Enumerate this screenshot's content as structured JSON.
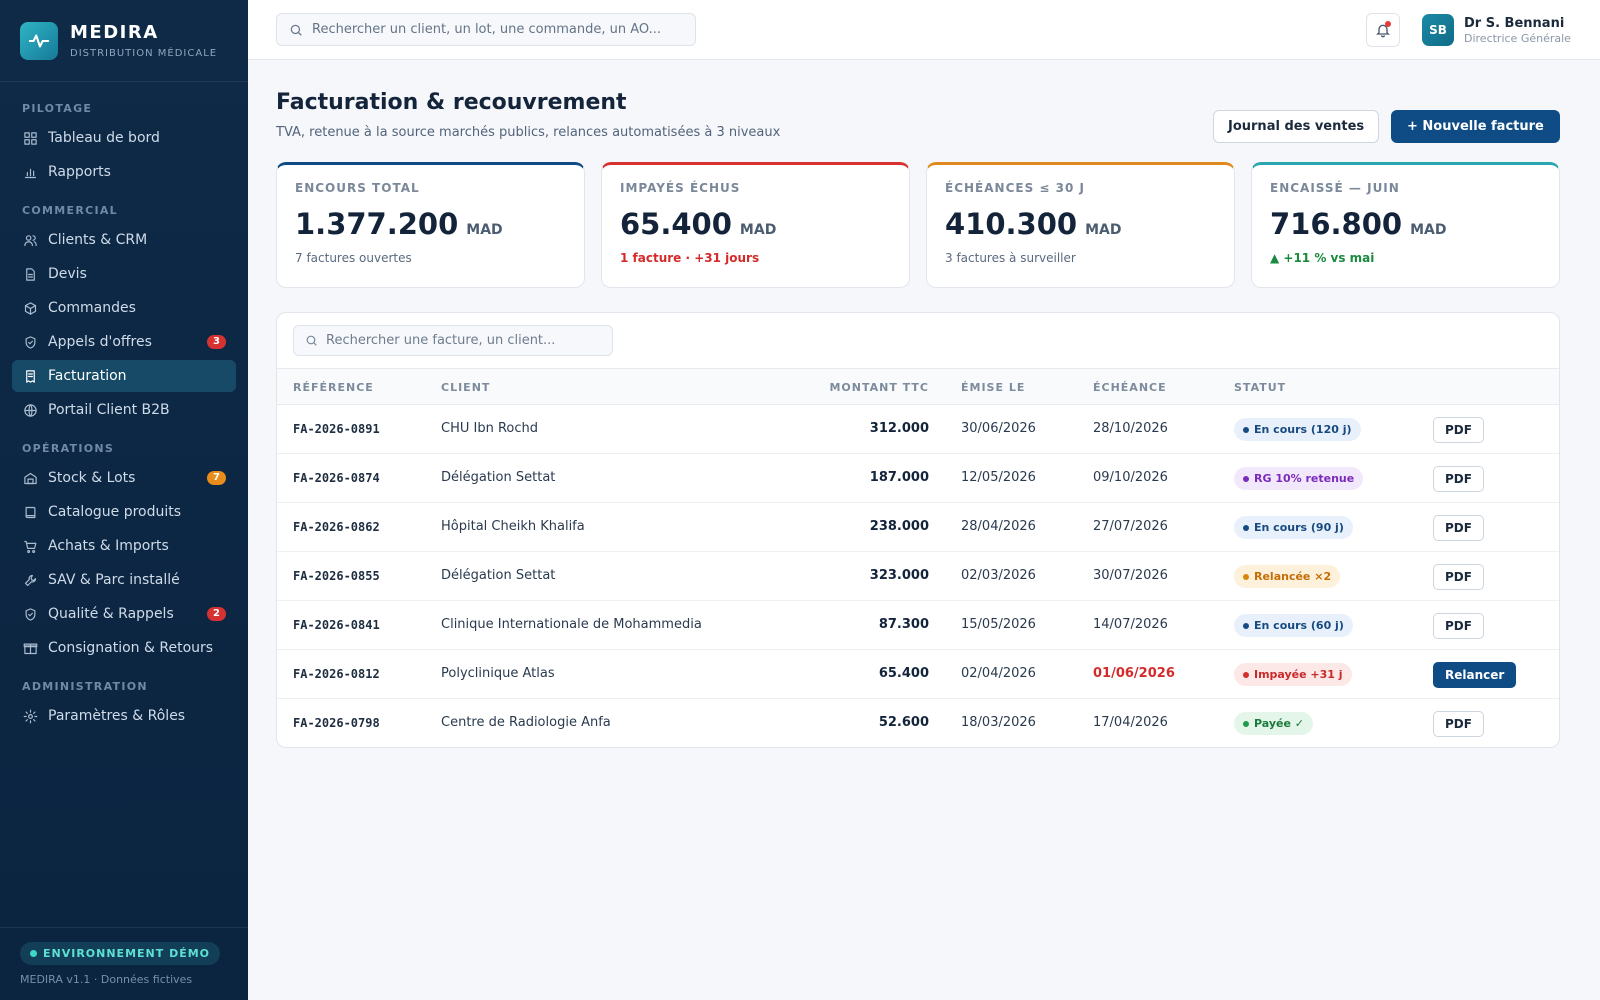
{
  "brand": {
    "name": "MEDIRA",
    "subtitle": "DISTRIBUTION MÉDICALE"
  },
  "sidebar": {
    "sections": [
      {
        "title": "PILOTAGE",
        "items": [
          {
            "label": "Tableau de bord",
            "icon": "grid-icon"
          },
          {
            "label": "Rapports",
            "icon": "bar-chart-icon"
          }
        ]
      },
      {
        "title": "COMMERCIAL",
        "items": [
          {
            "label": "Clients & CRM",
            "icon": "users-icon"
          },
          {
            "label": "Devis",
            "icon": "document-icon"
          },
          {
            "label": "Commandes",
            "icon": "box-icon"
          },
          {
            "label": "Appels d'offres",
            "icon": "shield-icon",
            "badge": "3",
            "badge_color": "red"
          },
          {
            "label": "Facturation",
            "icon": "receipt-icon",
            "active": true
          },
          {
            "label": "Portail Client B2B",
            "icon": "globe-icon"
          }
        ]
      },
      {
        "title": "OPÉRATIONS",
        "items": [
          {
            "label": "Stock & Lots",
            "icon": "warehouse-icon",
            "badge": "7",
            "badge_color": "orange"
          },
          {
            "label": "Catalogue produits",
            "icon": "book-icon"
          },
          {
            "label": "Achats & Imports",
            "icon": "cart-icon"
          },
          {
            "label": "SAV & Parc installé",
            "icon": "wrench-icon"
          },
          {
            "label": "Qualité & Rappels",
            "icon": "shield-icon",
            "badge": "2",
            "badge_color": "red"
          },
          {
            "label": "Consignation & Retours",
            "icon": "package-icon"
          }
        ]
      },
      {
        "title": "ADMINISTRATION",
        "items": [
          {
            "label": "Paramètres & Rôles",
            "icon": "gear-icon"
          }
        ]
      }
    ],
    "footer": {
      "env": "ENVIRONNEMENT DÉMO",
      "version": "MEDIRA v1.1 · Données fictives"
    }
  },
  "topbar": {
    "search_placeholder": "Rechercher un client, un lot, une commande, un AO...",
    "user": {
      "initials": "SB",
      "name": "Dr S. Bennani",
      "role": "Directrice Générale"
    }
  },
  "page": {
    "title": "Facturation & recouvrement",
    "subtitle": "TVA, retenue à la source marchés publics, relances automatisées à 3 niveaux",
    "btn_journal": "Journal des ventes",
    "btn_new": "+ Nouvelle facture"
  },
  "kpis": [
    {
      "label": "ENCOURS TOTAL",
      "value": "1.377.200",
      "unit": "MAD",
      "note": "7 factures ouvertes",
      "accent": "#0f4c86",
      "note_color": "#5a6a7e"
    },
    {
      "label": "IMPAYÉS ÉCHUS",
      "value": "65.400",
      "unit": "MAD",
      "note": "1 facture · +31 jours",
      "accent": "#d63232",
      "note_color": "#d42a2a"
    },
    {
      "label": "ÉCHÉANCES ≤ 30 J",
      "value": "410.300",
      "unit": "MAD",
      "note": "3 factures à surveiller",
      "accent": "#e08a1e",
      "note_color": "#5a6a7e"
    },
    {
      "label": "ENCAISSÉ — JUIN",
      "value": "716.800",
      "unit": "MAD",
      "note": "▲ +11 % vs mai",
      "accent": "#2aa6b0",
      "note_color": "#1b8a3e"
    }
  ],
  "table": {
    "search_placeholder": "Rechercher une facture, un client...",
    "headers": {
      "ref": "RÉFÉRENCE",
      "client": "CLIENT",
      "amount": "MONTANT TTC",
      "issued": "ÉMISE LE",
      "due": "ÉCHÉANCE",
      "status": "STATUT"
    },
    "rows": [
      {
        "ref": "FA-2026-0891",
        "client": "CHU Ibn Rochd",
        "amount": "312.000",
        "issued": "30/06/2026",
        "due": "28/10/2026",
        "status": "En cours (120 j)",
        "tone": "blue",
        "action": "PDF"
      },
      {
        "ref": "FA-2026-0874",
        "client": "Délégation Settat",
        "amount": "187.000",
        "issued": "12/05/2026",
        "due": "09/10/2026",
        "status": "RG 10% retenue",
        "tone": "purple",
        "action": "PDF"
      },
      {
        "ref": "FA-2026-0862",
        "client": "Hôpital Cheikh Khalifa",
        "amount": "238.000",
        "issued": "28/04/2026",
        "due": "27/07/2026",
        "status": "En cours (90 j)",
        "tone": "blue",
        "action": "PDF"
      },
      {
        "ref": "FA-2026-0855",
        "client": "Délégation Settat",
        "amount": "323.000",
        "issued": "02/03/2026",
        "due": "30/07/2026",
        "status": "Relancée ×2",
        "tone": "orange",
        "action": "PDF"
      },
      {
        "ref": "FA-2026-0841",
        "client": "Clinique Internationale de Mohammedia",
        "amount": "87.300",
        "issued": "15/05/2026",
        "due": "14/07/2026",
        "status": "En cours (60 j)",
        "tone": "blue",
        "action": "PDF"
      },
      {
        "ref": "FA-2026-0812",
        "client": "Polyclinique Atlas",
        "amount": "65.400",
        "issued": "02/04/2026",
        "due": "01/06/2026",
        "due_late": true,
        "status": "Impayée +31 j",
        "tone": "red",
        "action": "Relancer"
      },
      {
        "ref": "FA-2026-0798",
        "client": "Centre de Radiologie Anfa",
        "amount": "52.600",
        "issued": "18/03/2026",
        "due": "17/04/2026",
        "status": "Payée ✓",
        "tone": "green",
        "action": "PDF"
      }
    ]
  }
}
